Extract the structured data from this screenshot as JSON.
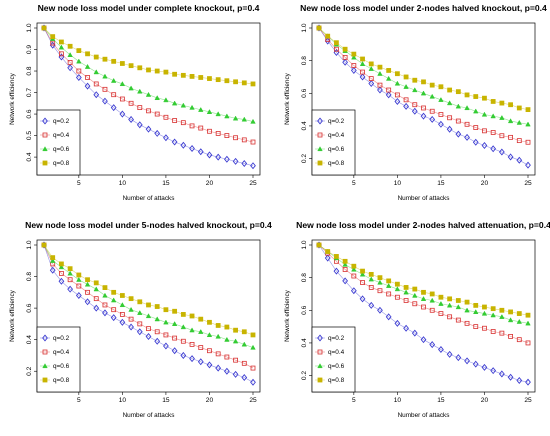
{
  "chart_data": [
    {
      "type": "line",
      "title": "New node loss model under complete knockout, p=0.4",
      "xlabel": "Number of attacks",
      "ylabel": "Network efficiency",
      "x": [
        1,
        2,
        3,
        4,
        5,
        6,
        7,
        8,
        9,
        10,
        11,
        12,
        13,
        14,
        15,
        16,
        17,
        18,
        19,
        20,
        21,
        22,
        23,
        24,
        25
      ],
      "xlim": [
        1,
        25
      ],
      "ylim": [
        0.34,
        1.0
      ],
      "xticks": [
        "5",
        "10",
        "15",
        "20",
        "25"
      ],
      "yticks": [
        "0.4",
        "0.5",
        "0.6",
        "0.7",
        "0.8",
        "0.9",
        "1.0"
      ],
      "grid": false,
      "legend": "bottom-left",
      "series": [
        {
          "name": "q=0.2",
          "color": "#3d3dd1",
          "marker": "diamond",
          "values": [
            1.0,
            0.92,
            0.865,
            0.815,
            0.77,
            0.73,
            0.69,
            0.66,
            0.63,
            0.6,
            0.575,
            0.55,
            0.53,
            0.51,
            0.49,
            0.47,
            0.455,
            0.44,
            0.425,
            0.41,
            0.4,
            0.39,
            0.38,
            0.37,
            0.36
          ]
        },
        {
          "name": "q=0.4",
          "color": "#d83030",
          "marker": "square",
          "values": [
            1.0,
            0.93,
            0.88,
            0.84,
            0.8,
            0.77,
            0.74,
            0.715,
            0.69,
            0.67,
            0.65,
            0.63,
            0.615,
            0.6,
            0.585,
            0.57,
            0.56,
            0.545,
            0.535,
            0.52,
            0.51,
            0.5,
            0.49,
            0.48,
            0.47
          ]
        },
        {
          "name": "q=0.6",
          "color": "#33cc33",
          "marker": "triangle",
          "values": [
            1.0,
            0.95,
            0.91,
            0.875,
            0.845,
            0.82,
            0.795,
            0.775,
            0.755,
            0.74,
            0.72,
            0.705,
            0.69,
            0.675,
            0.665,
            0.65,
            0.64,
            0.63,
            0.62,
            0.61,
            0.6,
            0.59,
            0.58,
            0.575,
            0.565
          ]
        },
        {
          "name": "q=0.8",
          "color": "#c8b400",
          "marker": "square",
          "values": [
            1.0,
            0.96,
            0.935,
            0.915,
            0.895,
            0.88,
            0.865,
            0.855,
            0.845,
            0.835,
            0.825,
            0.815,
            0.805,
            0.8,
            0.795,
            0.785,
            0.78,
            0.775,
            0.77,
            0.765,
            0.76,
            0.755,
            0.75,
            0.745,
            0.74
          ]
        }
      ]
    },
    {
      "type": "line",
      "title": "New node loss model under 2-nodes halved knockout, p=0.4",
      "xlabel": "Number of attacks",
      "ylabel": "Network efficiency",
      "x": [
        1,
        2,
        3,
        4,
        5,
        6,
        7,
        8,
        9,
        10,
        11,
        12,
        13,
        14,
        15,
        16,
        17,
        18,
        19,
        20,
        21,
        22,
        23,
        24,
        25
      ],
      "xlim": [
        1,
        25
      ],
      "ylim": [
        0.13,
        1.0
      ],
      "xticks": [
        "5",
        "10",
        "15",
        "20",
        "25"
      ],
      "yticks": [
        "0.2",
        "0.4",
        "0.6",
        "0.8",
        "1.0"
      ],
      "grid": false,
      "legend": "bottom-left",
      "series": [
        {
          "name": "q=0.2",
          "color": "#3d3dd1",
          "marker": "diamond",
          "values": [
            1.0,
            0.92,
            0.85,
            0.79,
            0.74,
            0.7,
            0.66,
            0.62,
            0.59,
            0.55,
            0.52,
            0.49,
            0.46,
            0.44,
            0.41,
            0.38,
            0.35,
            0.33,
            0.3,
            0.28,
            0.26,
            0.24,
            0.21,
            0.19,
            0.16
          ]
        },
        {
          "name": "q=0.4",
          "color": "#d83030",
          "marker": "square",
          "values": [
            1.0,
            0.93,
            0.87,
            0.82,
            0.77,
            0.73,
            0.69,
            0.65,
            0.62,
            0.59,
            0.56,
            0.53,
            0.51,
            0.49,
            0.47,
            0.45,
            0.43,
            0.41,
            0.39,
            0.37,
            0.36,
            0.34,
            0.33,
            0.31,
            0.3
          ]
        },
        {
          "name": "q=0.6",
          "color": "#33cc33",
          "marker": "triangle",
          "values": [
            1.0,
            0.95,
            0.9,
            0.86,
            0.82,
            0.78,
            0.75,
            0.72,
            0.69,
            0.66,
            0.64,
            0.62,
            0.6,
            0.58,
            0.56,
            0.54,
            0.52,
            0.51,
            0.49,
            0.47,
            0.46,
            0.45,
            0.43,
            0.42,
            0.41
          ]
        },
        {
          "name": "q=0.8",
          "color": "#c8b400",
          "marker": "square",
          "values": [
            1.0,
            0.95,
            0.91,
            0.87,
            0.84,
            0.81,
            0.78,
            0.76,
            0.74,
            0.72,
            0.7,
            0.68,
            0.67,
            0.65,
            0.64,
            0.62,
            0.61,
            0.59,
            0.58,
            0.57,
            0.55,
            0.54,
            0.53,
            0.51,
            0.5
          ]
        }
      ]
    },
    {
      "type": "line",
      "title": "New node loss model under 5-nodes halved knockout, p=0.4",
      "xlabel": "Number of attacks",
      "ylabel": "Network efficiency",
      "x": [
        1,
        2,
        3,
        4,
        5,
        6,
        7,
        8,
        9,
        10,
        11,
        12,
        13,
        14,
        15,
        16,
        17,
        18,
        19,
        20,
        21,
        22,
        23,
        24,
        25
      ],
      "xlim": [
        1,
        25
      ],
      "ylim": [
        0.1,
        1.0
      ],
      "xticks": [
        "5",
        "10",
        "15",
        "20",
        "25"
      ],
      "yticks": [
        "0.2",
        "0.4",
        "0.6",
        "0.8",
        "1.0"
      ],
      "grid": false,
      "legend": "bottom-left",
      "series": [
        {
          "name": "q=0.2",
          "color": "#3d3dd1",
          "marker": "diamond",
          "values": [
            1.0,
            0.84,
            0.77,
            0.72,
            0.68,
            0.64,
            0.6,
            0.57,
            0.54,
            0.51,
            0.48,
            0.45,
            0.42,
            0.39,
            0.36,
            0.33,
            0.3,
            0.28,
            0.26,
            0.24,
            0.22,
            0.2,
            0.18,
            0.16,
            0.13
          ]
        },
        {
          "name": "q=0.4",
          "color": "#d83030",
          "marker": "square",
          "values": [
            1.0,
            0.88,
            0.82,
            0.78,
            0.74,
            0.7,
            0.66,
            0.62,
            0.59,
            0.56,
            0.53,
            0.5,
            0.47,
            0.45,
            0.43,
            0.41,
            0.39,
            0.37,
            0.35,
            0.33,
            0.31,
            0.29,
            0.27,
            0.25,
            0.22
          ]
        },
        {
          "name": "q=0.6",
          "color": "#33cc33",
          "marker": "triangle",
          "values": [
            1.0,
            0.9,
            0.86,
            0.82,
            0.78,
            0.75,
            0.72,
            0.68,
            0.65,
            0.62,
            0.59,
            0.57,
            0.55,
            0.53,
            0.51,
            0.5,
            0.48,
            0.46,
            0.45,
            0.43,
            0.42,
            0.4,
            0.39,
            0.37,
            0.35
          ]
        },
        {
          "name": "q=0.8",
          "color": "#c8b400",
          "marker": "square",
          "values": [
            1.0,
            0.92,
            0.88,
            0.85,
            0.81,
            0.78,
            0.76,
            0.73,
            0.7,
            0.68,
            0.66,
            0.64,
            0.62,
            0.61,
            0.59,
            0.58,
            0.56,
            0.55,
            0.53,
            0.51,
            0.49,
            0.48,
            0.46,
            0.45,
            0.43
          ]
        }
      ]
    },
    {
      "type": "line",
      "title": "New node loss model under 2-nodes halved attenuation, p=0.4",
      "xlabel": "Number of attacks",
      "ylabel": "Network efficiency",
      "x": [
        1,
        2,
        3,
        4,
        5,
        6,
        7,
        8,
        9,
        10,
        11,
        12,
        13,
        14,
        15,
        16,
        17,
        18,
        19,
        20,
        21,
        22,
        23,
        24,
        25
      ],
      "xlim": [
        1,
        25
      ],
      "ylim": [
        0.13,
        1.0
      ],
      "xticks": [
        "5",
        "10",
        "15",
        "20",
        "25"
      ],
      "yticks": [
        "0.2",
        "0.4",
        "0.6",
        "0.8",
        "1.0"
      ],
      "grid": false,
      "legend": "bottom-left",
      "series": [
        {
          "name": "q=0.2",
          "color": "#3d3dd1",
          "marker": "diamond",
          "values": [
            1.0,
            0.92,
            0.84,
            0.78,
            0.72,
            0.67,
            0.63,
            0.6,
            0.56,
            0.52,
            0.49,
            0.46,
            0.42,
            0.39,
            0.36,
            0.33,
            0.31,
            0.29,
            0.27,
            0.25,
            0.23,
            0.21,
            0.19,
            0.17,
            0.16
          ]
        },
        {
          "name": "q=0.4",
          "color": "#d83030",
          "marker": "square",
          "values": [
            1.0,
            0.95,
            0.9,
            0.85,
            0.81,
            0.77,
            0.74,
            0.72,
            0.7,
            0.68,
            0.66,
            0.64,
            0.62,
            0.6,
            0.58,
            0.56,
            0.54,
            0.52,
            0.5,
            0.49,
            0.47,
            0.46,
            0.44,
            0.42,
            0.4
          ]
        },
        {
          "name": "q=0.6",
          "color": "#33cc33",
          "marker": "triangle",
          "values": [
            1.0,
            0.96,
            0.92,
            0.88,
            0.85,
            0.82,
            0.79,
            0.77,
            0.75,
            0.73,
            0.71,
            0.69,
            0.67,
            0.66,
            0.64,
            0.63,
            0.62,
            0.6,
            0.59,
            0.58,
            0.57,
            0.56,
            0.54,
            0.53,
            0.52
          ]
        },
        {
          "name": "q=0.8",
          "color": "#c8b400",
          "marker": "square",
          "values": [
            1.0,
            0.96,
            0.93,
            0.9,
            0.87,
            0.84,
            0.82,
            0.8,
            0.78,
            0.76,
            0.74,
            0.73,
            0.71,
            0.7,
            0.68,
            0.67,
            0.66,
            0.65,
            0.63,
            0.62,
            0.61,
            0.6,
            0.59,
            0.58,
            0.57
          ]
        }
      ]
    }
  ]
}
